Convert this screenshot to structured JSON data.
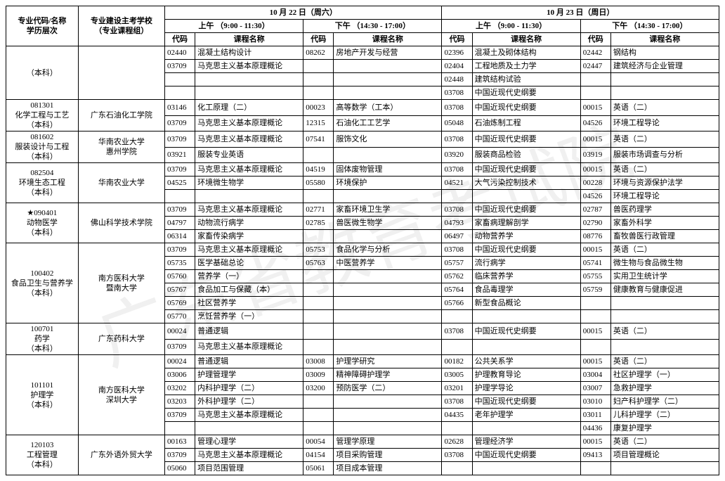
{
  "watermark": "广东省教育考试院",
  "header": {
    "col_major": "专业代码/名称\n学历层次",
    "col_school": "专业建设主考学校\n（专业课程组）",
    "day1": "10 月 22 日（周六）",
    "day2": "10 月 23 日（周日）",
    "am": "上午 （9:00 - 11:30）",
    "pm": "下午 （14:30 - 17:00）",
    "code": "代码",
    "name": "课程名称"
  },
  "rows": [
    {
      "major": "（本科）",
      "major_rows": 4,
      "school": "",
      "school_rows": 4,
      "c": [
        [
          "02440",
          "混凝土结构设计"
        ],
        [
          "08262",
          "房地产开发与经营"
        ],
        [
          "02396",
          "混凝土及砌体结构"
        ],
        [
          "02442",
          "钢结构"
        ]
      ]
    },
    {
      "c": [
        [
          "03709",
          "马克思主义基本原理概论"
        ],
        [
          "",
          ""
        ],
        [
          "02404",
          "工程地质及土力学"
        ],
        [
          "02447",
          "建筑经济与企业管理"
        ]
      ]
    },
    {
      "c": [
        [
          "",
          ""
        ],
        [
          "",
          ""
        ],
        [
          "02448",
          "建筑结构试验"
        ],
        [
          "",
          ""
        ]
      ]
    },
    {
      "c": [
        [
          "",
          ""
        ],
        [
          "",
          ""
        ],
        [
          "03708",
          "中国近现代史纲要"
        ],
        [
          "",
          ""
        ]
      ]
    },
    {
      "major": "081301\n化学工程与工艺\n（本科）",
      "major_rows": 2,
      "school": "广东石油化工学院",
      "school_rows": 2,
      "c": [
        [
          "03146",
          "化工原理（二）"
        ],
        [
          "00023",
          "高等数学（工本）"
        ],
        [
          "03708",
          "中国近现代史纲要"
        ],
        [
          "00015",
          "英语（二）"
        ]
      ]
    },
    {
      "c": [
        [
          "03709",
          "马克思主义基本原理概论"
        ],
        [
          "12315",
          "石油化工工艺学"
        ],
        [
          "05048",
          "石油炼制工程"
        ],
        [
          "04526",
          "环境工程导论"
        ]
      ]
    },
    {
      "major": "081602\n服装设计与工程\n（本科）",
      "major_rows": 2,
      "school": "华南农业大学\n惠州学院",
      "school_rows": 2,
      "c": [
        [
          "03709",
          "马克思主义基本原理概论"
        ],
        [
          "07541",
          "服饰文化"
        ],
        [
          "03708",
          "中国近现代史纲要"
        ],
        [
          "00015",
          "英语（二）"
        ]
      ]
    },
    {
      "c": [
        [
          "03921",
          "服装专业英语"
        ],
        [
          "",
          ""
        ],
        [
          "03920",
          "服装商品检验"
        ],
        [
          "03919",
          "服装市场调查与分析"
        ]
      ]
    },
    {
      "major": "082504\n环境生态工程\n（本科）",
      "major_rows": 3,
      "school": "华南农业大学",
      "school_rows": 3,
      "c": [
        [
          "03709",
          "马克思主义基本原理概论"
        ],
        [
          "04519",
          "固体废物管理"
        ],
        [
          "03708",
          "中国近现代史纲要"
        ],
        [
          "00015",
          "英语（二）"
        ]
      ]
    },
    {
      "c": [
        [
          "04525",
          "环境微生物学"
        ],
        [
          "05580",
          "环境保护"
        ],
        [
          "04521",
          "大气污染控制技术"
        ],
        [
          "00228",
          "环境与资源保护法学"
        ]
      ]
    },
    {
      "c": [
        [
          "",
          ""
        ],
        [
          "",
          ""
        ],
        [
          "",
          ""
        ],
        [
          "04526",
          "环境工程导论"
        ]
      ]
    },
    {
      "major": "★090401\n动物医学\n（本科）",
      "major_rows": 3,
      "school": "佛山科学技术学院",
      "school_rows": 3,
      "c": [
        [
          "03709",
          "马克思主义基本原理概论"
        ],
        [
          "02771",
          "家畜环境卫生学"
        ],
        [
          "03708",
          "中国近现代史纲要"
        ],
        [
          "02787",
          "兽医药理学"
        ]
      ]
    },
    {
      "c": [
        [
          "04797",
          "动物流行病学"
        ],
        [
          "02785",
          "兽医微生物学"
        ],
        [
          "04793",
          "家畜病理解剖学"
        ],
        [
          "02790",
          "家畜外科学"
        ]
      ]
    },
    {
      "c": [
        [
          "06314",
          "家畜传染病学"
        ],
        [
          "",
          ""
        ],
        [
          "06497",
          "动物营养学"
        ],
        [
          "08776",
          "畜牧兽医行政管理"
        ]
      ]
    },
    {
      "major": "100402\n食品卫生与营养学\n（本科）",
      "major_rows": 6,
      "school": "南方医科大学\n暨南大学",
      "school_rows": 6,
      "c": [
        [
          "03709",
          "马克思主义基本原理概论"
        ],
        [
          "05753",
          "食品化学与分析"
        ],
        [
          "03708",
          "中国近现代史纲要"
        ],
        [
          "00015",
          "英语（二）"
        ]
      ]
    },
    {
      "c": [
        [
          "05735",
          "医学基础总论"
        ],
        [
          "05763",
          "中医营养学"
        ],
        [
          "05757",
          "流行病学"
        ],
        [
          "05741",
          "微生物与食品微生物"
        ]
      ]
    },
    {
      "c": [
        [
          "05760",
          "营养学（一）"
        ],
        [
          "",
          ""
        ],
        [
          "05762",
          "临床营养学"
        ],
        [
          "05755",
          "实用卫生统计学"
        ]
      ]
    },
    {
      "c": [
        [
          "05767",
          "食品加工与保藏（本）"
        ],
        [
          "",
          ""
        ],
        [
          "05764",
          "食品毒理学"
        ],
        [
          "05759",
          "健康教育与健康促进"
        ]
      ]
    },
    {
      "c": [
        [
          "05769",
          "社区营养学"
        ],
        [
          "",
          ""
        ],
        [
          "05766",
          "新型食品概论"
        ],
        [
          "",
          ""
        ]
      ]
    },
    {
      "c": [
        [
          "05770",
          "烹饪营养学（一）"
        ],
        [
          "",
          ""
        ],
        [
          "",
          ""
        ],
        [
          "",
          ""
        ]
      ]
    },
    {
      "major": "100701\n药学\n（本科）",
      "major_rows": 2,
      "school": "广东药科大学",
      "school_rows": 2,
      "c": [
        [
          "00024",
          "普通逻辑"
        ],
        [
          "",
          ""
        ],
        [
          "03708",
          "中国近现代史纲要"
        ],
        [
          "00015",
          "英语（二）"
        ]
      ]
    },
    {
      "c": [
        [
          "03709",
          "马克思主义基本原理概论"
        ],
        [
          "",
          ""
        ],
        [
          "",
          ""
        ],
        [
          "",
          ""
        ]
      ]
    },
    {
      "major": "101101\n护理学\n（本科）",
      "major_rows": 6,
      "school": "南方医科大学\n深圳大学",
      "school_rows": 6,
      "c": [
        [
          "00024",
          "普通逻辑"
        ],
        [
          "03008",
          "护理学研究"
        ],
        [
          "00182",
          "公共关系学"
        ],
        [
          "00015",
          "英语（二）"
        ]
      ]
    },
    {
      "c": [
        [
          "03006",
          "护理管理学"
        ],
        [
          "03009",
          "精神障碍护理学"
        ],
        [
          "03005",
          "护理教育导论"
        ],
        [
          "03004",
          "社区护理学（一）"
        ]
      ]
    },
    {
      "c": [
        [
          "03202",
          "内科护理学（二）"
        ],
        [
          "03200",
          "预防医学（二）"
        ],
        [
          "03201",
          "护理学导论"
        ],
        [
          "03007",
          "急救护理学"
        ]
      ]
    },
    {
      "c": [
        [
          "03203",
          "外科护理学（二）"
        ],
        [
          "",
          ""
        ],
        [
          "03708",
          "中国近现代史纲要"
        ],
        [
          "03010",
          "妇产科护理学（二）"
        ]
      ]
    },
    {
      "c": [
        [
          "03709",
          "马克思主义基本原理概论"
        ],
        [
          "",
          ""
        ],
        [
          "04435",
          "老年护理学"
        ],
        [
          "03011",
          "儿科护理学（二）"
        ]
      ]
    },
    {
      "c": [
        [
          "",
          ""
        ],
        [
          "",
          ""
        ],
        [
          "",
          ""
        ],
        [
          "04436",
          "康复护理学"
        ]
      ]
    },
    {
      "major": "120103\n工程管理\n（本科）",
      "major_rows": 3,
      "school": "广东外语外贸大学",
      "school_rows": 3,
      "c": [
        [
          "00163",
          "管理心理学"
        ],
        [
          "00054",
          "管理学原理"
        ],
        [
          "02628",
          "管理经济学"
        ],
        [
          "00015",
          "英语（二）"
        ]
      ]
    },
    {
      "c": [
        [
          "03709",
          "马克思主义基本原理概论"
        ],
        [
          "04154",
          "项目采购管理"
        ],
        [
          "03708",
          "中国近现代史纲要"
        ],
        [
          "09413",
          "项目管理概论"
        ]
      ]
    },
    {
      "c": [
        [
          "05060",
          "项目范围管理"
        ],
        [
          "05061",
          "项目成本管理"
        ],
        [
          "",
          ""
        ],
        [
          "",
          ""
        ]
      ]
    }
  ]
}
